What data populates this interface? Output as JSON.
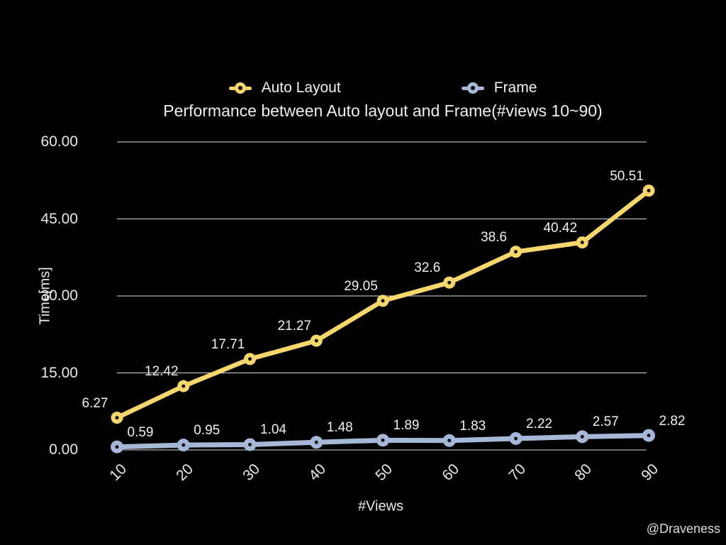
{
  "page": {
    "background": "#000000",
    "watermark": "@Draveness"
  },
  "chart": {
    "title": "Performance between Auto layout and Frame(#views 10~90)",
    "xlabel": "#Views",
    "ylabel": "Time[ms]",
    "legend": [
      {
        "label": "Auto Layout",
        "color": "#F6D76E"
      },
      {
        "label": "Frame",
        "color": "#A6B8D8"
      }
    ]
  },
  "chart_data": {
    "type": "line",
    "title": "Performance between Auto layout and Frame(#views 10~90)",
    "xlabel": "#Views",
    "ylabel": "Time[ms]",
    "categories": [
      "10",
      "20",
      "30",
      "40",
      "50",
      "60",
      "70",
      "80",
      "90"
    ],
    "series": [
      {
        "name": "Auto Layout",
        "color": "#F6D76E",
        "values": [
          6.27,
          12.42,
          17.71,
          21.27,
          29.05,
          32.6,
          38.6,
          40.42,
          50.51
        ],
        "point_labels": [
          "6.27",
          "12.42",
          "17.71",
          "21.27",
          "29.05",
          "32.6",
          "38.6",
          "40.42",
          "50.51"
        ],
        "label_side": "above-left",
        "line_width": 6.5,
        "marker_radius": 8.5
      },
      {
        "name": "Frame",
        "color": "#A6B8D8",
        "values": [
          0.59,
          0.95,
          1.04,
          1.48,
          1.89,
          1.83,
          2.22,
          2.57,
          2.82
        ],
        "point_labels": [
          "0.59",
          "0.95",
          "1.04",
          "1.48",
          "1.89",
          "1.83",
          "2.22",
          "2.57",
          "2.82"
        ],
        "label_side": "above-right",
        "line_width": 7,
        "marker_radius": 9
      }
    ],
    "y_ticks": [
      {
        "label": "0.00",
        "value": 0
      },
      {
        "label": "15.00",
        "value": 15
      },
      {
        "label": "30.00",
        "value": 30
      },
      {
        "label": "45.00",
        "value": 45
      },
      {
        "label": "60.00",
        "value": 60
      }
    ],
    "ylim": [
      0,
      60
    ],
    "grid": true,
    "grid_color": "#DADADA",
    "legend_position": "top",
    "marker_hole_color": "#111111",
    "text_color": "#E9E9E9"
  }
}
